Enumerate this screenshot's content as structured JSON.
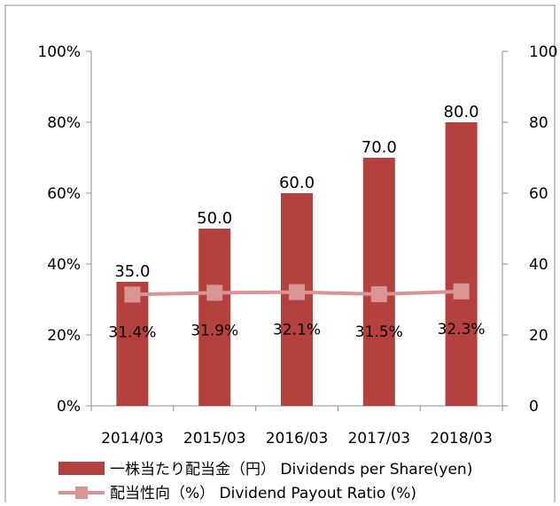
{
  "chart_data": {
    "type": "bar",
    "categories": [
      "2014/03",
      "2015/03",
      "2016/03",
      "2017/03",
      "2018/03"
    ],
    "series": [
      {
        "name": "一株当たり配当金（円） Dividends per Share(yen)",
        "type": "bar",
        "axis": "right",
        "values": [
          35.0,
          50.0,
          60.0,
          70.0,
          80.0
        ],
        "labels": [
          "35.0",
          "50.0",
          "60.0",
          "70.0",
          "80.0"
        ],
        "color": "#b5413e"
      },
      {
        "name": "配当性向（%） Dividend Payout Ratio (%)",
        "type": "line",
        "axis": "left",
        "values": [
          31.4,
          31.9,
          32.1,
          31.5,
          32.3
        ],
        "labels": [
          "31.4%",
          "31.9%",
          "32.1%",
          "31.5%",
          "32.3%"
        ],
        "color": "#d99594"
      }
    ],
    "y_left": {
      "ylim": [
        0,
        100
      ],
      "ticks": [
        "0%",
        "20%",
        "40%",
        "60%",
        "80%",
        "100%"
      ]
    },
    "y_right": {
      "ylim": [
        0,
        100
      ],
      "ticks": [
        "0",
        "20",
        "40",
        "60",
        "80",
        "100"
      ]
    },
    "gridlines": false,
    "legend": "bottom"
  }
}
